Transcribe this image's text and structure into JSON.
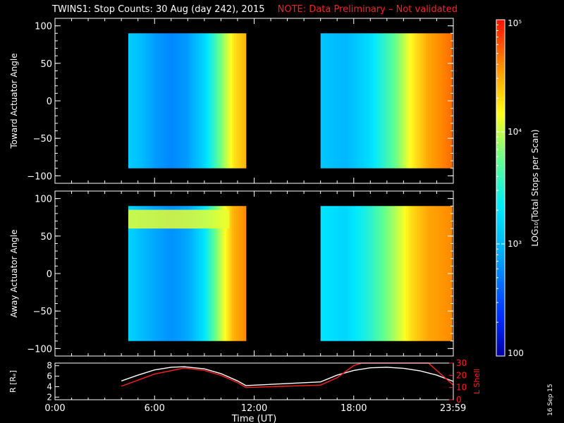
{
  "title": {
    "main": "TWINS1: Stop Counts: 30 Aug (day 242), 2015",
    "note": "NOTE: Data Preliminary – Not validated"
  },
  "date_stamp": "16 Sep 15",
  "colors": {
    "background": "#000000",
    "axes": "#ffffff",
    "note_text": "#ff2020",
    "r_trace": "#ffffff",
    "l_shell_trace": "#ff2020"
  },
  "chart_data": [
    {
      "type": "heatmap",
      "id": "toward",
      "ylabel": "Toward Actuator Angle",
      "yticks": [
        "100",
        "50",
        "0",
        "−50",
        "−100"
      ],
      "ytick_values": [
        100,
        50,
        0,
        -50,
        -100
      ],
      "ylim": [
        -110,
        110
      ],
      "xlim_hours": [
        0,
        24
      ],
      "data_ranges": [
        {
          "start": "4:25",
          "end": "11:30",
          "ymin": -90,
          "ymax": 90
        },
        {
          "start": "16:00",
          "end": "23:55",
          "ymin": -90,
          "ymax": 90
        }
      ],
      "color_profile": [
        {
          "t": "4:25",
          "log_counts": 3.15
        },
        {
          "t": "5:10",
          "log_counts": 3.05
        },
        {
          "t": "6:00",
          "log_counts": 2.85
        },
        {
          "t": "7:00",
          "log_counts": 2.75
        },
        {
          "t": "8:00",
          "log_counts": 2.85
        },
        {
          "t": "9:00",
          "log_counts": 3.2
        },
        {
          "t": "10:00",
          "log_counts": 3.8
        },
        {
          "t": "10:45",
          "log_counts": 4.25
        },
        {
          "t": "11:30",
          "log_counts": 4.45
        },
        {
          "t": "16:00",
          "log_counts": 3.1
        },
        {
          "t": "17:30",
          "log_counts": 3.0
        },
        {
          "t": "19:00",
          "log_counts": 3.25
        },
        {
          "t": "20:30",
          "log_counts": 3.75
        },
        {
          "t": "21:30",
          "log_counts": 4.2
        },
        {
          "t": "22:30",
          "log_counts": 4.5
        },
        {
          "t": "23:55",
          "log_counts": 4.7
        }
      ]
    },
    {
      "type": "heatmap",
      "id": "away",
      "ylabel": "Away Actuator Angle",
      "yticks": [
        "100",
        "50",
        "0",
        "−50",
        "−100"
      ],
      "ytick_values": [
        100,
        50,
        0,
        -50,
        -100
      ],
      "ylim": [
        -110,
        110
      ],
      "xlim_hours": [
        0,
        24
      ],
      "data_ranges": [
        {
          "start": "4:25",
          "end": "11:30",
          "ymin": -90,
          "ymax": 90
        },
        {
          "start": "16:00",
          "end": "23:55",
          "ymin": -90,
          "ymax": 90
        }
      ],
      "color_profile": [
        {
          "t": "4:25",
          "log_counts": 3.2
        },
        {
          "t": "5:10",
          "log_counts": 3.05
        },
        {
          "t": "6:00",
          "log_counts": 2.9
        },
        {
          "t": "7:00",
          "log_counts": 2.8
        },
        {
          "t": "8:00",
          "log_counts": 2.9
        },
        {
          "t": "9:00",
          "log_counts": 3.3
        },
        {
          "t": "10:00",
          "log_counts": 4.0
        },
        {
          "t": "10:45",
          "log_counts": 4.45
        },
        {
          "t": "11:30",
          "log_counts": 4.6
        },
        {
          "t": "16:00",
          "log_counts": 3.3
        },
        {
          "t": "17:30",
          "log_counts": 3.2
        },
        {
          "t": "19:00",
          "log_counts": 3.5
        },
        {
          "t": "20:30",
          "log_counts": 3.95
        },
        {
          "t": "21:30",
          "log_counts": 4.3
        },
        {
          "t": "22:30",
          "log_counts": 4.5
        },
        {
          "t": "23:55",
          "log_counts": 4.6
        }
      ],
      "enhanced_band": {
        "start": "4:25",
        "end": "10:30",
        "ymin": 60,
        "ymax": 85,
        "log_counts": 4.1
      }
    },
    {
      "type": "line",
      "id": "orbit",
      "ylabel_left": "R [Rₑ]",
      "ylabel_right": "L Shell",
      "xlabel": "Time (UT)",
      "xticks": [
        "0:00",
        "6:00",
        "12:00",
        "18:00",
        "23:59"
      ],
      "xtick_hours": [
        0,
        6,
        12,
        18,
        23.983
      ],
      "xlim_hours": [
        0,
        24
      ],
      "y_left_ticks": [
        "8",
        "6",
        "4",
        "2"
      ],
      "y_left_values": [
        8,
        6,
        4,
        2
      ],
      "y_left_lim": [
        1.5,
        8.5
      ],
      "y_right_ticks": [
        "30",
        "20",
        "10",
        "0"
      ],
      "y_right_values": [
        30,
        20,
        10,
        0
      ],
      "y_right_lim": [
        0,
        30
      ],
      "series": [
        {
          "name": "R [Rₑ]",
          "axis": "left",
          "x_hours": [
            4,
            5,
            6,
            7,
            7.8,
            9,
            10,
            11,
            11.5,
            16,
            17,
            18,
            19,
            20,
            21,
            22,
            23,
            24
          ],
          "y": [
            5.1,
            6.2,
            7.2,
            7.7,
            7.8,
            7.4,
            6.5,
            5.1,
            4.2,
            4.9,
            6.2,
            7.1,
            7.6,
            7.7,
            7.5,
            7.0,
            6.2,
            5.0
          ]
        },
        {
          "name": "L Shell",
          "axis": "right",
          "x_hours": [
            4,
            6,
            7.8,
            9,
            10,
            11,
            11.5,
            16,
            17,
            18,
            18.5,
            22.5,
            24
          ],
          "y": [
            11,
            21,
            26,
            24,
            20,
            14,
            10,
            12,
            18,
            28,
            30,
            30,
            12
          ]
        }
      ]
    }
  ],
  "colorbar": {
    "label": "LOG₁₀(Total Stops per Scan)",
    "ticks": [
      {
        "label": "10⁵",
        "log_value": 5
      },
      {
        "label": "10⁴",
        "log_value": 4
      },
      {
        "label": "10³",
        "log_value": 3
      },
      {
        "label": "100",
        "log_value": 2
      }
    ],
    "range": [
      2,
      5
    ]
  }
}
